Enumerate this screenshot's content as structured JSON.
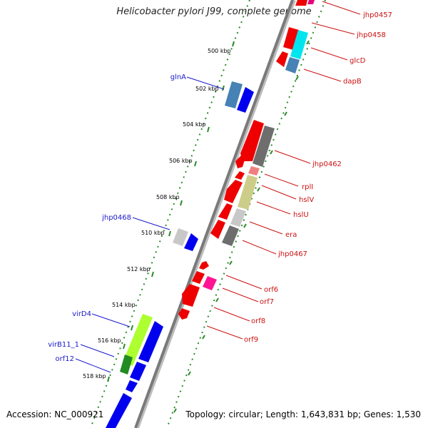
{
  "title": "Helicobacter pylori J99, complete genome",
  "accession_label": "Accession: NC_000921",
  "topology_label": "Topology: circular; Length: 1,643,831 bp; Genes: 1,530",
  "colors": {
    "backbone": "#8a8a8a",
    "tick_dotted": "#2a8a2a",
    "forward_label": "#1a1acc",
    "reverse_label": "#cc1111",
    "red_gene": "#ee0000",
    "blue_gene": "#0000ee"
  },
  "kbp_ticks": [
    "500 kbp",
    "502 kbp",
    "504 kbp",
    "506 kbp",
    "508 kbp",
    "510 kbp",
    "512 kbp",
    "514 kbp",
    "516 kbp",
    "518 kbp"
  ],
  "forward_labels": [
    "glnA",
    "jhp0468",
    "virD4",
    "virB11_1",
    "orf12"
  ],
  "reverse_labels": [
    "jhp0457",
    "jhp0458",
    "glcD",
    "dapB",
    "jhp0462",
    "rplI",
    "hslV",
    "hslU",
    "era",
    "jhp0467",
    "orf6",
    "orf7",
    "orf8",
    "orf9"
  ]
}
